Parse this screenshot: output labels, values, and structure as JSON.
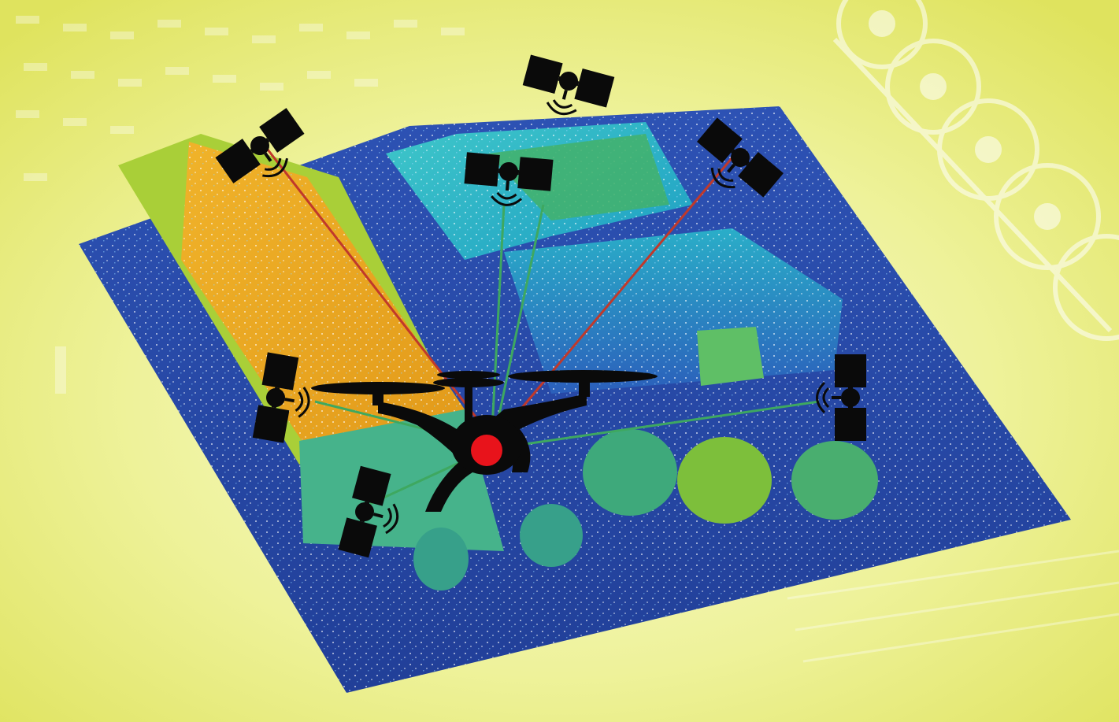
{
  "colors": {
    "background": "#e6ea6e",
    "background_light": "#f6f8c2",
    "pointcloud_ground": "#2f55b8",
    "pointcloud_building_orange": "#e9a21e",
    "pointcloud_building_green": "#a9cf38",
    "pointcloud_building_teal": "#2bb3c6",
    "pointcloud_building_cyan": "#26c0c8",
    "pointcloud_tree": "#3fae7c",
    "satellite": "#0a0a0a",
    "drone": "#0a0a0a",
    "drone_marker": "#e8131b",
    "blocked_signal_line": "#c0392b",
    "clear_signal_line": "#3ea860"
  },
  "scene": {
    "drone": {
      "icon": "quadcopter-drone-icon",
      "marker": "red-dot"
    },
    "satellites": [
      {
        "id": "sat-1",
        "icon": "satellite-icon",
        "signal": "blocked"
      },
      {
        "id": "sat-2",
        "icon": "satellite-icon",
        "signal": "none"
      },
      {
        "id": "sat-3",
        "icon": "satellite-icon",
        "signal": "clear"
      },
      {
        "id": "sat-4",
        "icon": "satellite-icon",
        "signal": "blocked"
      },
      {
        "id": "sat-5",
        "icon": "satellite-icon",
        "signal": "clear"
      },
      {
        "id": "sat-6",
        "icon": "satellite-icon",
        "signal": "clear"
      },
      {
        "id": "sat-7",
        "icon": "satellite-icon",
        "signal": "clear"
      }
    ]
  }
}
